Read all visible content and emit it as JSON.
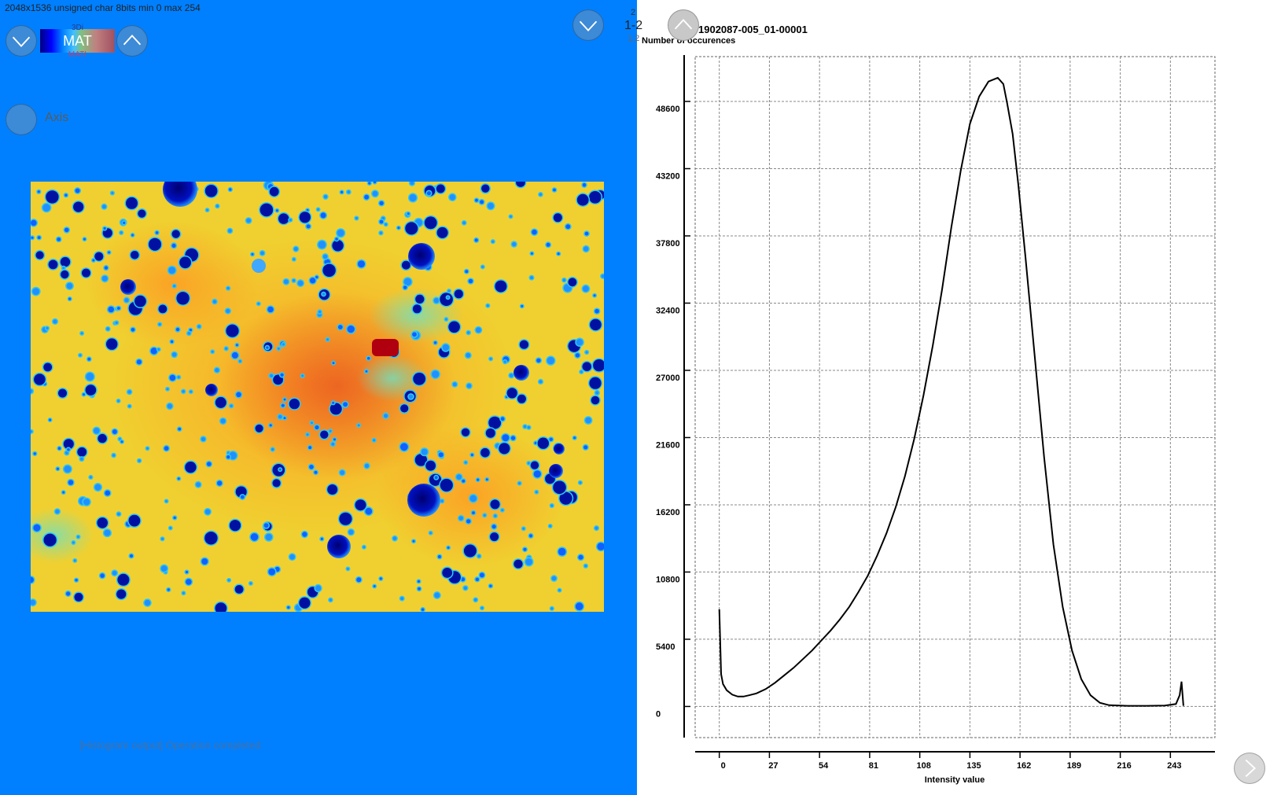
{
  "image_info": "2048x1536 unsigned char 8bits min 0 max 254",
  "colormap": {
    "top_label": "3Di",
    "main_label": "MAT",
    "bottom_label": "MATI"
  },
  "axis_toggle_label": "Axis",
  "status": "[Histogram output] Operation completed",
  "nav": {
    "page_top": "2",
    "page_range": "1-2",
    "page_sub": "1.2"
  },
  "chart_title": "1902087-005_01-00001",
  "icons": {
    "prev": "chevron-down-icon",
    "next_level": "chevron-up-icon",
    "axis": "circle-icon",
    "forward": "chevron-right-icon"
  },
  "colors": {
    "panel_bg": "#0080ff",
    "button": "#3d8ad7",
    "button_inactive": "#c8c8c8"
  },
  "chart_data": {
    "type": "line",
    "title": "1902087-005_01-00001",
    "xlabel": "Intensity value",
    "ylabel": "Number of occurences",
    "x_ticks": [
      0,
      27,
      54,
      81,
      108,
      135,
      162,
      189,
      216,
      243
    ],
    "y_ticks": [
      0,
      5400,
      10800,
      16200,
      21600,
      27000,
      32400,
      37800,
      43200,
      48600
    ],
    "xlim": [
      -13,
      267
    ],
    "ylim": [
      -2500,
      52200
    ],
    "grid": true,
    "series": [
      {
        "points": [
          [
            0,
            7800
          ],
          [
            1,
            2600
          ],
          [
            2,
            1800
          ],
          [
            4,
            1300
          ],
          [
            7,
            950
          ],
          [
            10,
            800
          ],
          [
            13,
            800
          ],
          [
            16,
            900
          ],
          [
            20,
            1050
          ],
          [
            25,
            1400
          ],
          [
            30,
            1900
          ],
          [
            35,
            2500
          ],
          [
            40,
            3100
          ],
          [
            45,
            3800
          ],
          [
            50,
            4500
          ],
          [
            55,
            5300
          ],
          [
            60,
            6100
          ],
          [
            65,
            7000
          ],
          [
            70,
            8000
          ],
          [
            75,
            9200
          ],
          [
            80,
            10500
          ],
          [
            85,
            12100
          ],
          [
            90,
            13900
          ],
          [
            95,
            16000
          ],
          [
            100,
            18500
          ],
          [
            105,
            21500
          ],
          [
            110,
            25000
          ],
          [
            115,
            29000
          ],
          [
            120,
            33500
          ],
          [
            125,
            38500
          ],
          [
            130,
            43000
          ],
          [
            135,
            46800
          ],
          [
            140,
            49000
          ],
          [
            145,
            50200
          ],
          [
            150,
            50500
          ],
          [
            153,
            50000
          ],
          [
            155,
            48500
          ],
          [
            158,
            46000
          ],
          [
            161,
            42000
          ],
          [
            165,
            36000
          ],
          [
            170,
            28000
          ],
          [
            175,
            20000
          ],
          [
            180,
            13000
          ],
          [
            185,
            8000
          ],
          [
            190,
            4500
          ],
          [
            195,
            2200
          ],
          [
            200,
            900
          ],
          [
            205,
            300
          ],
          [
            210,
            100
          ],
          [
            220,
            50
          ],
          [
            230,
            50
          ],
          [
            240,
            80
          ],
          [
            246,
            200
          ],
          [
            248,
            900
          ],
          [
            249,
            2000
          ],
          [
            250,
            50
          ]
        ]
      }
    ]
  }
}
